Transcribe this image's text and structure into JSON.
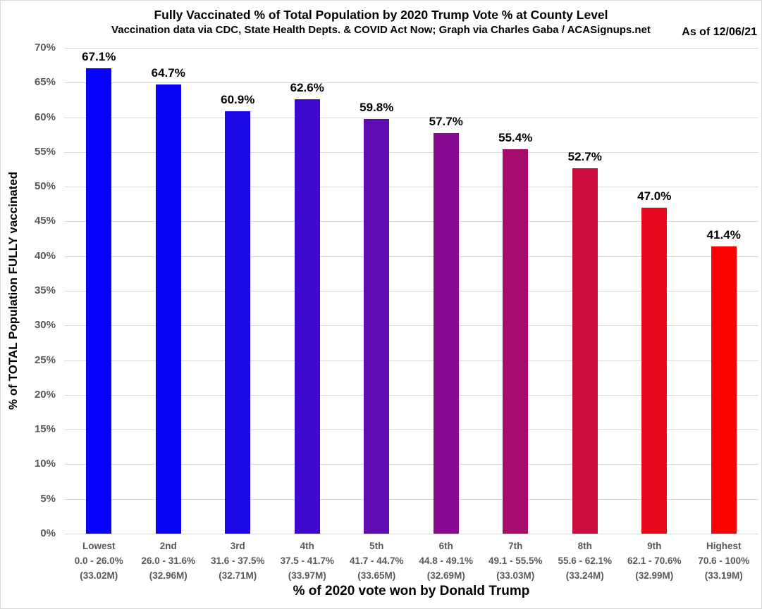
{
  "header": {
    "title": "Fully Vaccinated % of Total Population by 2020 Trump Vote % at County Level",
    "subtitle": "Vaccination data via CDC, State Health Depts. & COVID Act Now; Graph via Charles Gaba / ACASignups.net",
    "as_of": "As of 12/06/21"
  },
  "colors": {
    "background": "#ffffff",
    "grid": "#d9d9d9",
    "tick_text": "#595959",
    "axis_text": "#000000",
    "border": "#d9d9d9"
  },
  "chart_data": {
    "type": "bar",
    "title": "Fully Vaccinated % of Total Population by 2020 Trump Vote % at County Level",
    "subtitle": "Vaccination data via CDC, State Health Depts. & COVID Act Now; Graph via Charles Gaba / ACASignups.net",
    "annotation": "As of 12/06/21",
    "xlabel": "% of 2020 vote won by Donald Trump",
    "ylabel": "% of TOTAL Population FULLY vaccinated",
    "ylim": [
      0,
      70
    ],
    "ytick_step": 5,
    "yticks": [
      "0%",
      "5%",
      "10%",
      "15%",
      "20%",
      "25%",
      "30%",
      "35%",
      "40%",
      "45%",
      "50%",
      "55%",
      "60%",
      "65%",
      "70%"
    ],
    "grid": "horizontal",
    "legend": "none",
    "categories": [
      {
        "decile": "Lowest",
        "trump_vote_range": "0.0 - 26.0%",
        "population": "(33.02M)",
        "value": 67.1,
        "label": "67.1%",
        "color": "#0603fa"
      },
      {
        "decile": "2nd",
        "trump_vote_range": "26.0 - 31.6%",
        "population": "(32.96M)",
        "value": 64.7,
        "label": "64.7%",
        "color": "#0a04f4"
      },
      {
        "decile": "3rd",
        "trump_vote_range": "31.6 - 37.5%",
        "population": "(32.71M)",
        "value": 60.9,
        "label": "60.9%",
        "color": "#1b06e6"
      },
      {
        "decile": "4th",
        "trump_vote_range": "37.5 - 41.7%",
        "population": "(33.97M)",
        "value": 62.6,
        "label": "62.6%",
        "color": "#3d09cf"
      },
      {
        "decile": "5th",
        "trump_vote_range": "41.7 - 44.7%",
        "population": "(33.65M)",
        "value": 59.8,
        "label": "59.8%",
        "color": "#5e0bb1"
      },
      {
        "decile": "6th",
        "trump_vote_range": "44.8 - 49.1%",
        "population": "(32.69M)",
        "value": 57.7,
        "label": "57.7%",
        "color": "#880a92"
      },
      {
        "decile": "7th",
        "trump_vote_range": "49.1 - 55.5%",
        "population": "(33.03M)",
        "value": 55.4,
        "label": "55.4%",
        "color": "#a70b6c"
      },
      {
        "decile": "8th",
        "trump_vote_range": "55.6 - 62.1%",
        "population": "(33.24M)",
        "value": 52.7,
        "label": "52.7%",
        "color": "#cb0b3e"
      },
      {
        "decile": "9th",
        "trump_vote_range": "62.1 - 70.6%",
        "population": "(32.99M)",
        "value": 47.0,
        "label": "47.0%",
        "color": "#e6081c"
      },
      {
        "decile": "Highest",
        "trump_vote_range": "70.6 - 100%",
        "population": "(33.19M)",
        "value": 41.4,
        "label": "41.4%",
        "color": "#fb0303"
      }
    ]
  }
}
